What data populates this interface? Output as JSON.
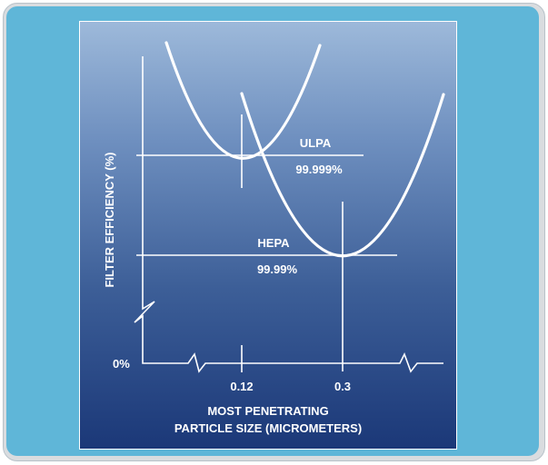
{
  "diagram": {
    "y_axis_label": "FILTER EFFICIENCY (%)",
    "y_axis_zero_label": "0%",
    "x_tick_labels": [
      "0.12",
      "0.3"
    ],
    "x_axis_label_line1": "MOST PENETRATING",
    "x_axis_label_line2": "PARTICLE SIZE (MICROMETERS)",
    "curves": [
      {
        "name": "ULPA",
        "efficiency": "99.999%",
        "min_particle_size": "0.12"
      },
      {
        "name": "HEPA",
        "efficiency": "99.99%",
        "min_particle_size": "0.3"
      }
    ],
    "colors": {
      "card_background": "#5fb6d8",
      "panel_top": "#9db9da",
      "panel_bottom": "#1b3878",
      "line_color": "#ffffff"
    }
  }
}
